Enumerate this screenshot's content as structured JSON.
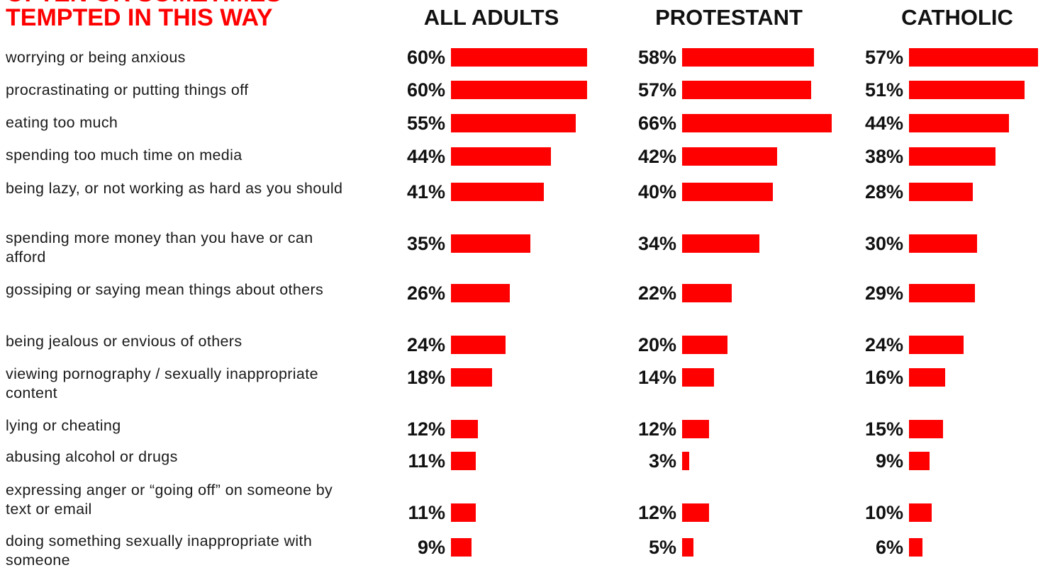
{
  "title": {
    "line1": "OFTEN OR SOMETIMES",
    "line2": "TEMPTED IN THIS WAY"
  },
  "colors": {
    "accent": "#ff0000",
    "bar": "#ff0000",
    "text": "#111111"
  },
  "chart_data": {
    "type": "bar",
    "orientation": "horizontal",
    "unit": "%",
    "categories": [
      "worrying or being anxious",
      "procrastinating or putting things off",
      "eating too much",
      "spending too much time on media",
      "being lazy, or not working as hard as you should",
      "spending more money than you have or can afford",
      "gossiping or saying mean things about others",
      "being jealous or envious of others",
      "viewing pornography / sexually inappropriate content",
      "lying or cheating",
      "abusing alcohol or drugs",
      "expressing anger or “going off” on someone by text or email",
      "doing something sexually inappropriate with someone"
    ],
    "series": [
      {
        "name": "ALL ADULTS",
        "values": [
          60,
          60,
          55,
          44,
          41,
          35,
          26,
          24,
          18,
          12,
          11,
          11,
          9
        ]
      },
      {
        "name": "PROTESTANT",
        "values": [
          58,
          57,
          66,
          42,
          40,
          34,
          22,
          20,
          14,
          12,
          3,
          12,
          5
        ]
      },
      {
        "name": "CATHOLIC",
        "values": [
          57,
          51,
          44,
          38,
          28,
          30,
          29,
          24,
          16,
          15,
          9,
          10,
          6
        ]
      }
    ],
    "value_labels": [
      [
        "60%",
        "60%",
        "55%",
        "44%",
        "41%",
        "35%",
        "26%",
        "24%",
        "18%",
        "12%",
        "11%",
        "11%",
        "9%"
      ],
      [
        "58%",
        "57%",
        "66%",
        "42%",
        "40%",
        "34%",
        "22%",
        "20%",
        "14%",
        "12%",
        "3%",
        "12%",
        "5%"
      ],
      [
        "57%",
        "51%",
        "44%",
        "38%",
        "28%",
        "30%",
        "29%",
        "24%",
        "16%",
        "15%",
        "9%",
        "10%",
        "6%"
      ]
    ],
    "xlim": [
      0,
      66
    ],
    "grid": false,
    "legend": "none"
  }
}
